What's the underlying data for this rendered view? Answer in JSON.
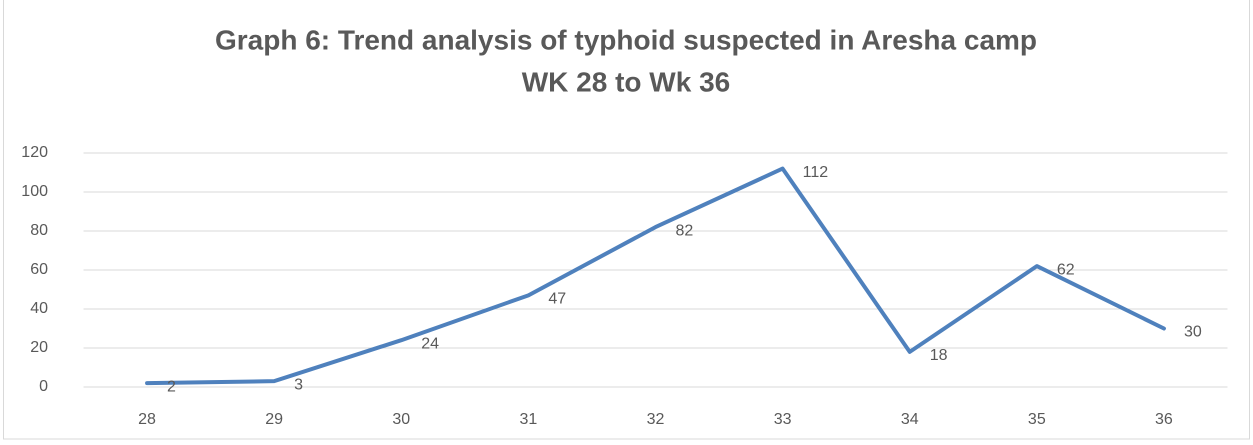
{
  "chart_data": {
    "type": "line",
    "title": [
      "Graph 6: Trend analysis of typhoid suspected in Aresha camp",
      "WK 28 to Wk 36"
    ],
    "categories": [
      "28",
      "29",
      "30",
      "31",
      "32",
      "33",
      "34",
      "35",
      "36"
    ],
    "values": [
      2,
      3,
      24,
      47,
      82,
      112,
      18,
      62,
      30
    ],
    "color": "#4f81bd",
    "ylim": [
      0,
      120
    ],
    "yticks": [
      0,
      20,
      40,
      60,
      80,
      100,
      120
    ],
    "grid": true
  }
}
